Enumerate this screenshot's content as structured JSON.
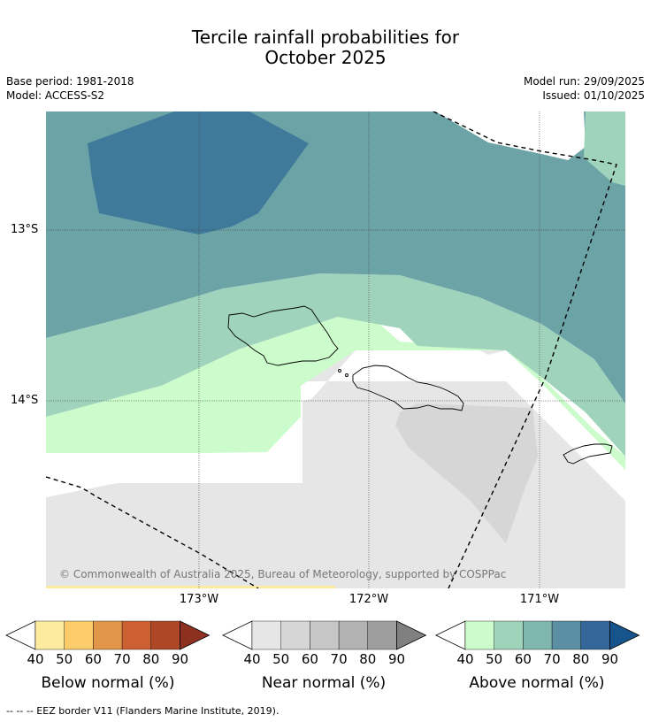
{
  "title_line1": "Tercile rainfall probabilities for",
  "title_line2": "October 2025",
  "base_period": "Base period: 1981-2018",
  "model": "Model: ACCESS-S2",
  "model_run": "Model run: 29/09/2025",
  "issued": "Issued: 01/10/2025",
  "lat_labels": [
    "13°S",
    "14°S"
  ],
  "lon_labels": [
    "173°W",
    "172°W",
    "171°W"
  ],
  "copyright": "© Commonwealth of Australia 2025, Bureau of Meteorology, supported by COSPPac",
  "legends": {
    "below": {
      "title": "Below normal (%)",
      "ticks": [
        "40",
        "50",
        "60",
        "70",
        "80",
        "90"
      ],
      "colors": [
        "#ffffff",
        "#fdeba0",
        "#fdcc6a",
        "#e2964a",
        "#cc6033",
        "#ad4726",
        "#8e3020"
      ]
    },
    "near": {
      "title": "Near normal (%)",
      "ticks": [
        "40",
        "50",
        "60",
        "70",
        "80",
        "90"
      ],
      "colors": [
        "#ffffff",
        "#e6e6e6",
        "#d6d6d6",
        "#c6c6c6",
        "#b3b3b3",
        "#9e9e9e",
        "#808080"
      ]
    },
    "above": {
      "title": "Above normal (%)",
      "ticks": [
        "40",
        "50",
        "60",
        "70",
        "80",
        "90"
      ],
      "colors": [
        "#ffffff",
        "#ccfccc",
        "#9fd4bb",
        "#7fb7ae",
        "#5b8fa3",
        "#336699",
        "#15558c"
      ]
    }
  },
  "footnote": "--  --  -- EEZ border V11 (Flanders Marine Institute, 2019).",
  "colors": {
    "above_60_70": "#6ca3a7",
    "above_70_80": "#3f7a9b",
    "above_50_60": "#9fd3bb",
    "above_40_50": "#ccfccc",
    "near_40_50": "#e6e6e6",
    "near_50_60": "#d6d6d6",
    "below_40_50": "#fdeba0"
  }
}
